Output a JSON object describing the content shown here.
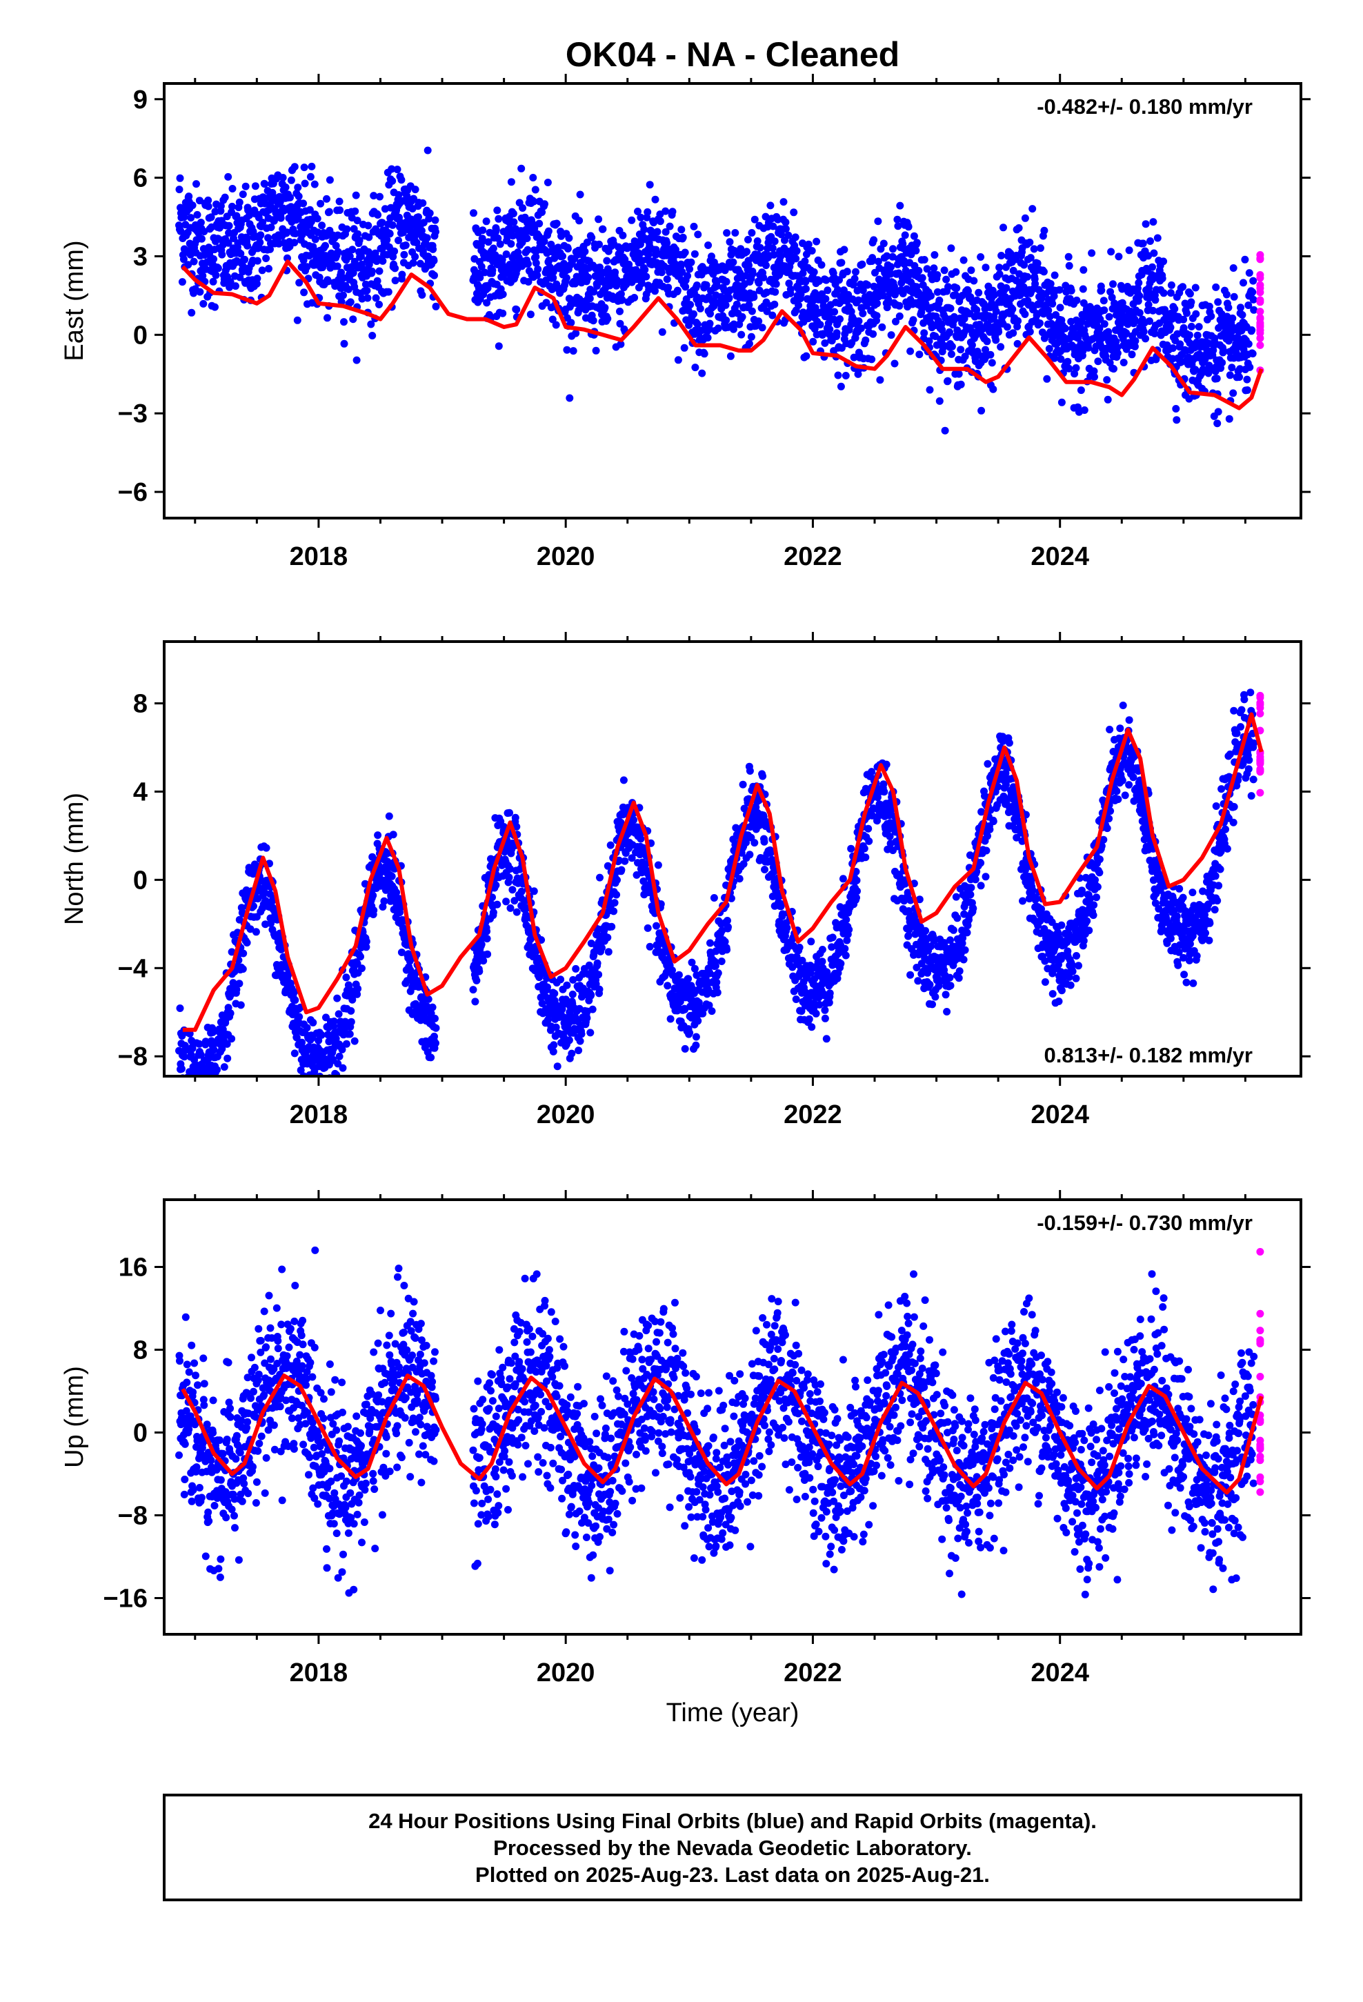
{
  "title": "OK04  - NA - Cleaned",
  "xlabel": "Time (year)",
  "colors": {
    "final": "#0000ff",
    "rapid": "#ff00ff",
    "model": "#ff0000",
    "frame": "#000000"
  },
  "caption": {
    "line1": "24 Hour Positions Using Final Orbits (blue) and Rapid Orbits (magenta).",
    "line2": "Processed by the Nevada Geodetic Laboratory.",
    "line3": "Plotted on 2025-Aug-23. Last data on 2025-Aug-21."
  },
  "chart_data": [
    {
      "type": "scatter",
      "name": "east",
      "ylabel": "East (mm)",
      "rate_label": "-0.482+/- 0.180 mm/yr",
      "rate_position": "top-right",
      "xlim": [
        2016.75,
        2025.95
      ],
      "ylim": [
        -7.0,
        9.6
      ],
      "yticks": [
        -6,
        -3,
        0,
        3,
        6,
        9
      ],
      "xticks": [
        2018,
        2020,
        2022,
        2024
      ],
      "trend": {
        "offset": 2.0,
        "rate": -0.482,
        "annual_amp": 0.9,
        "semiannual_amp": 0.3,
        "phase_peak": 0.72,
        "noise": 1.1
      },
      "final_range": [
        2016.87,
        2025.57
      ],
      "rapid_range": [
        2025.57,
        2025.63
      ],
      "gaps": [
        [
          2018.95,
          2019.25
        ]
      ],
      "model": [
        [
          2016.9,
          2.6
        ],
        [
          2017.0,
          2.1
        ],
        [
          2017.15,
          1.6
        ],
        [
          2017.3,
          1.55
        ],
        [
          2017.5,
          1.2
        ],
        [
          2017.6,
          1.5
        ],
        [
          2017.75,
          2.8
        ],
        [
          2017.9,
          2.0
        ],
        [
          2018.0,
          1.2
        ],
        [
          2018.2,
          1.1
        ],
        [
          2018.4,
          0.8
        ],
        [
          2018.5,
          0.6
        ],
        [
          2018.6,
          1.2
        ],
        [
          2018.75,
          2.3
        ],
        [
          2018.9,
          1.8
        ],
        [
          2019.05,
          0.8
        ],
        [
          2019.2,
          0.6
        ],
        [
          2019.35,
          0.6
        ],
        [
          2019.5,
          0.3
        ],
        [
          2019.6,
          0.4
        ],
        [
          2019.75,
          1.8
        ],
        [
          2019.9,
          1.4
        ],
        [
          2020.0,
          0.3
        ],
        [
          2020.15,
          0.2
        ],
        [
          2020.3,
          0.0
        ],
        [
          2020.45,
          -0.2
        ],
        [
          2020.55,
          0.3
        ],
        [
          2020.75,
          1.4
        ],
        [
          2020.9,
          0.6
        ],
        [
          2021.05,
          -0.4
        ],
        [
          2021.25,
          -0.4
        ],
        [
          2021.4,
          -0.6
        ],
        [
          2021.5,
          -0.6
        ],
        [
          2021.6,
          -0.2
        ],
        [
          2021.75,
          0.9
        ],
        [
          2021.9,
          0.2
        ],
        [
          2022.0,
          -0.7
        ],
        [
          2022.2,
          -0.8
        ],
        [
          2022.35,
          -1.2
        ],
        [
          2022.5,
          -1.3
        ],
        [
          2022.6,
          -0.8
        ],
        [
          2022.75,
          0.3
        ],
        [
          2022.9,
          -0.4
        ],
        [
          2023.05,
          -1.3
        ],
        [
          2023.25,
          -1.3
        ],
        [
          2023.4,
          -1.8
        ],
        [
          2023.5,
          -1.6
        ],
        [
          2023.75,
          -0.1
        ],
        [
          2023.9,
          -0.9
        ],
        [
          2024.05,
          -1.8
        ],
        [
          2024.25,
          -1.8
        ],
        [
          2024.4,
          -2.0
        ],
        [
          2024.5,
          -2.3
        ],
        [
          2024.6,
          -1.7
        ],
        [
          2024.75,
          -0.5
        ],
        [
          2024.9,
          -1.2
        ],
        [
          2025.05,
          -2.2
        ],
        [
          2025.25,
          -2.3
        ],
        [
          2025.45,
          -2.8
        ],
        [
          2025.55,
          -2.4
        ],
        [
          2025.63,
          -1.3
        ]
      ]
    },
    {
      "type": "scatter",
      "name": "north",
      "ylabel": "North (mm)",
      "rate_label": "0.813+/- 0.182 mm/yr",
      "rate_position": "bottom-right",
      "xlim": [
        2016.75,
        2025.95
      ],
      "ylim": [
        -8.9,
        10.8
      ],
      "yticks": [
        -8,
        -4,
        0,
        4,
        8
      ],
      "xticks": [
        2018,
        2020,
        2022,
        2024
      ],
      "trend": {
        "offset": -1.9,
        "rate": 0.813,
        "annual_amp": 4.2,
        "semiannual_amp": 0.6,
        "phase_peak": 0.52,
        "noise": 0.9
      },
      "final_range": [
        2016.87,
        2025.57
      ],
      "rapid_range": [
        2025.57,
        2025.63
      ],
      "gaps": [
        [
          2018.95,
          2019.25
        ]
      ],
      "model": [
        [
          2016.9,
          -6.8
        ],
        [
          2017.0,
          -6.8
        ],
        [
          2017.15,
          -5.0
        ],
        [
          2017.3,
          -4.0
        ],
        [
          2017.42,
          -1.5
        ],
        [
          2017.55,
          1.0
        ],
        [
          2017.65,
          -0.5
        ],
        [
          2017.75,
          -3.5
        ],
        [
          2017.9,
          -6.0
        ],
        [
          2018.0,
          -5.8
        ],
        [
          2018.15,
          -4.5
        ],
        [
          2018.3,
          -3.0
        ],
        [
          2018.42,
          0.0
        ],
        [
          2018.55,
          1.9
        ],
        [
          2018.65,
          0.5
        ],
        [
          2018.75,
          -3.0
        ],
        [
          2018.88,
          -5.2
        ],
        [
          2019.0,
          -4.8
        ],
        [
          2019.15,
          -3.5
        ],
        [
          2019.3,
          -2.5
        ],
        [
          2019.42,
          0.5
        ],
        [
          2019.55,
          2.6
        ],
        [
          2019.65,
          1.0
        ],
        [
          2019.75,
          -2.5
        ],
        [
          2019.88,
          -4.4
        ],
        [
          2020.0,
          -4.0
        ],
        [
          2020.15,
          -2.8
        ],
        [
          2020.3,
          -1.5
        ],
        [
          2020.42,
          1.5
        ],
        [
          2020.55,
          3.5
        ],
        [
          2020.65,
          2.0
        ],
        [
          2020.75,
          -1.5
        ],
        [
          2020.88,
          -3.7
        ],
        [
          2021.0,
          -3.2
        ],
        [
          2021.15,
          -2.0
        ],
        [
          2021.3,
          -1.0
        ],
        [
          2021.42,
          2.0
        ],
        [
          2021.55,
          4.3
        ],
        [
          2021.65,
          3.0
        ],
        [
          2021.75,
          -0.5
        ],
        [
          2021.88,
          -2.8
        ],
        [
          2022.0,
          -2.2
        ],
        [
          2022.15,
          -1.0
        ],
        [
          2022.3,
          0.0
        ],
        [
          2022.42,
          3.0
        ],
        [
          2022.55,
          5.2
        ],
        [
          2022.65,
          4.0
        ],
        [
          2022.75,
          0.5
        ],
        [
          2022.88,
          -1.9
        ],
        [
          2023.0,
          -1.5
        ],
        [
          2023.15,
          -0.3
        ],
        [
          2023.3,
          0.5
        ],
        [
          2023.42,
          3.5
        ],
        [
          2023.55,
          6.0
        ],
        [
          2023.65,
          4.5
        ],
        [
          2023.75,
          1.0
        ],
        [
          2023.88,
          -1.1
        ],
        [
          2024.0,
          -1.0
        ],
        [
          2024.15,
          0.3
        ],
        [
          2024.3,
          1.5
        ],
        [
          2024.42,
          4.5
        ],
        [
          2024.55,
          6.8
        ],
        [
          2024.65,
          5.5
        ],
        [
          2024.75,
          2.0
        ],
        [
          2024.88,
          -0.3
        ],
        [
          2025.0,
          0.0
        ],
        [
          2025.15,
          1.0
        ],
        [
          2025.3,
          2.5
        ],
        [
          2025.45,
          5.5
        ],
        [
          2025.55,
          7.5
        ],
        [
          2025.63,
          5.8
        ]
      ]
    },
    {
      "type": "scatter",
      "name": "up",
      "ylabel": "Up (mm)",
      "rate_label": "-0.159+/- 0.730 mm/yr",
      "rate_position": "top-right",
      "xlim": [
        2016.75,
        2025.95
      ],
      "ylim": [
        -19.5,
        22.5
      ],
      "yticks": [
        -16,
        -8,
        0,
        8,
        16
      ],
      "xticks": [
        2018,
        2020,
        2022,
        2024
      ],
      "trend": {
        "offset": 0.0,
        "rate": -0.159,
        "annual_amp": 5.0,
        "semiannual_amp": 0.0,
        "phase_peak": 0.72,
        "noise": 4.0
      },
      "final_range": [
        2016.87,
        2025.57
      ],
      "rapid_range": [
        2025.57,
        2025.63
      ],
      "gaps": [
        [
          2018.95,
          2019.25
        ]
      ],
      "model": [
        [
          2016.9,
          4.2
        ],
        [
          2017.0,
          2.0
        ],
        [
          2017.15,
          -2.0
        ],
        [
          2017.3,
          -4.0
        ],
        [
          2017.4,
          -3.0
        ],
        [
          2017.55,
          2.0
        ],
        [
          2017.72,
          5.5
        ],
        [
          2017.85,
          4.5
        ],
        [
          2018.0,
          1.0
        ],
        [
          2018.15,
          -2.5
        ],
        [
          2018.3,
          -4.3
        ],
        [
          2018.4,
          -3.5
        ],
        [
          2018.55,
          1.5
        ],
        [
          2018.72,
          5.5
        ],
        [
          2018.85,
          4.5
        ],
        [
          2019.0,
          0.5
        ],
        [
          2019.15,
          -3.0
        ],
        [
          2019.3,
          -4.5
        ],
        [
          2019.4,
          -3.0
        ],
        [
          2019.55,
          2.0
        ],
        [
          2019.72,
          5.3
        ],
        [
          2019.85,
          4.0
        ],
        [
          2020.0,
          0.5
        ],
        [
          2020.15,
          -3.0
        ],
        [
          2020.3,
          -4.8
        ],
        [
          2020.4,
          -3.5
        ],
        [
          2020.55,
          1.5
        ],
        [
          2020.72,
          5.2
        ],
        [
          2020.85,
          4.0
        ],
        [
          2021.0,
          0.5
        ],
        [
          2021.15,
          -3.0
        ],
        [
          2021.3,
          -5.0
        ],
        [
          2021.4,
          -4.0
        ],
        [
          2021.55,
          1.0
        ],
        [
          2021.72,
          5.0
        ],
        [
          2021.85,
          4.0
        ],
        [
          2022.0,
          0.5
        ],
        [
          2022.15,
          -3.0
        ],
        [
          2022.3,
          -5.0
        ],
        [
          2022.4,
          -4.0
        ],
        [
          2022.55,
          1.0
        ],
        [
          2022.72,
          4.8
        ],
        [
          2022.85,
          3.8
        ],
        [
          2023.0,
          0.3
        ],
        [
          2023.15,
          -3.2
        ],
        [
          2023.3,
          -5.2
        ],
        [
          2023.4,
          -4.0
        ],
        [
          2023.55,
          1.0
        ],
        [
          2023.72,
          4.8
        ],
        [
          2023.85,
          3.8
        ],
        [
          2024.0,
          0.0
        ],
        [
          2024.15,
          -3.5
        ],
        [
          2024.3,
          -5.4
        ],
        [
          2024.4,
          -4.2
        ],
        [
          2024.55,
          0.8
        ],
        [
          2024.72,
          4.5
        ],
        [
          2024.85,
          3.5
        ],
        [
          2025.0,
          0.0
        ],
        [
          2025.15,
          -3.5
        ],
        [
          2025.35,
          -5.8
        ],
        [
          2025.45,
          -4.5
        ],
        [
          2025.63,
          3.5
        ]
      ]
    }
  ]
}
